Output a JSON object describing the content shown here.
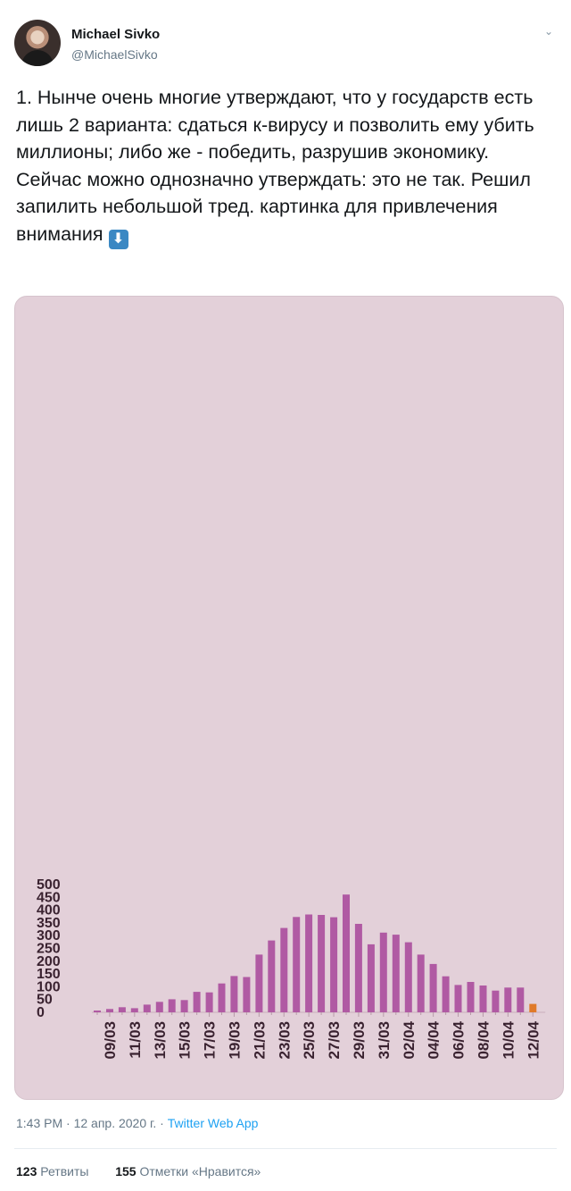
{
  "author": {
    "name": "Michael Sivko",
    "handle": "@MichaelSivko"
  },
  "tweet": {
    "paragraph1": "1. Нынче очень многие утверждают, что у государств есть лишь 2 варианта: сдаться к-вирусу и позволить ему убить  миллионы; либо же - победить, разрушив экономику.",
    "paragraph2": "Сейчас можно однозначно утверждать: это не так. Решил запилить небольшой тред. картинка для привлечения внимания",
    "emoji": "⬇"
  },
  "footer": {
    "time": "1:43 PM · 12 апр. 2020 г. · ",
    "app": "Twitter Web App",
    "retweets_count": "123",
    "retweets_label": "Ретвиты",
    "likes_count": "155",
    "likes_label": "Отметки «Нравится»"
  },
  "colors": {
    "bar": "#b05aa3",
    "highlight": "#e07a2a",
    "background": "#e3d0d9",
    "tick_text": "#3a2230"
  },
  "chart_data": {
    "type": "bar",
    "title": "",
    "xlabel": "",
    "ylabel": "",
    "ylim": [
      0,
      500
    ],
    "yticks": [
      0,
      50,
      100,
      150,
      200,
      250,
      300,
      350,
      400,
      450,
      500
    ],
    "tick_labels": [
      "09/03",
      "11/03",
      "13/03",
      "15/03",
      "17/03",
      "19/03",
      "21/03",
      "23/03",
      "25/03",
      "27/03",
      "29/03",
      "31/03",
      "02/04",
      "04/04",
      "06/04",
      "08/04",
      "10/04",
      "12/04"
    ],
    "categories": [
      "08/03",
      "09/03",
      "10/03",
      "11/03",
      "12/03",
      "13/03",
      "14/03",
      "15/03",
      "16/03",
      "17/03",
      "18/03",
      "19/03",
      "20/03",
      "21/03",
      "22/03",
      "23/03",
      "24/03",
      "25/03",
      "26/03",
      "27/03",
      "28/03",
      "29/03",
      "30/03",
      "31/03",
      "01/04",
      "02/04",
      "03/04",
      "04/04",
      "05/04",
      "06/04",
      "07/04",
      "08/04",
      "09/04",
      "10/04",
      "11/04",
      "12/04"
    ],
    "values": [
      7,
      13,
      20,
      16,
      30,
      41,
      51,
      48,
      80,
      78,
      113,
      142,
      138,
      226,
      281,
      330,
      373,
      383,
      381,
      372,
      461,
      346,
      266,
      312,
      304,
      274,
      226,
      189,
      141,
      107,
      119,
      105,
      85,
      97,
      97,
      33
    ],
    "highlight_index": 35,
    "grid": false,
    "legend": "none"
  }
}
